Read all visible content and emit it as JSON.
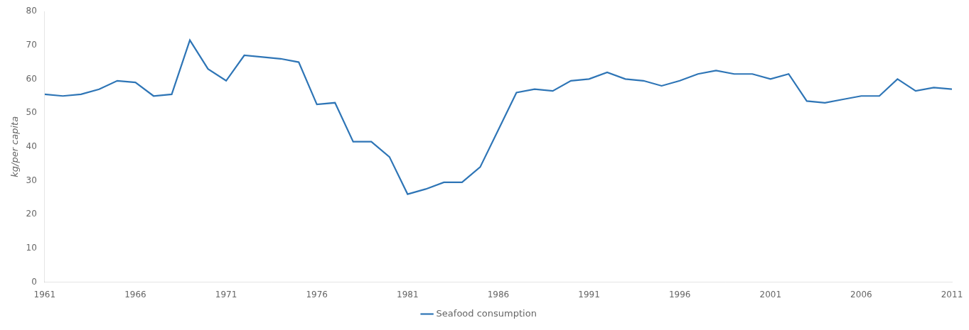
{
  "chart_data": {
    "type": "line",
    "x": [
      1961,
      1962,
      1963,
      1964,
      1965,
      1966,
      1967,
      1968,
      1969,
      1970,
      1971,
      1972,
      1973,
      1974,
      1975,
      1976,
      1977,
      1978,
      1979,
      1980,
      1981,
      1982,
      1983,
      1984,
      1985,
      1986,
      1987,
      1988,
      1989,
      1990,
      1991,
      1992,
      1993,
      1994,
      1995,
      1996,
      1997,
      1998,
      1999,
      2000,
      2001,
      2002,
      2003,
      2004,
      2005,
      2006,
      2007,
      2008,
      2009,
      2010,
      2011
    ],
    "series": [
      {
        "name": "Seafood consumption",
        "color": "#2E75B6",
        "values": [
          55.5,
          55.0,
          55.5,
          57.0,
          59.5,
          59.0,
          55.0,
          55.5,
          71.5,
          63.0,
          59.5,
          67.0,
          66.5,
          66.0,
          65.0,
          52.5,
          53.0,
          41.5,
          41.5,
          37.0,
          26.0,
          27.5,
          29.5,
          29.5,
          34.0,
          45.0,
          56.0,
          57.0,
          56.5,
          59.5,
          60.0,
          62.0,
          60.0,
          59.5,
          58.0,
          59.5,
          61.5,
          62.5,
          61.5,
          61.5,
          60.0,
          61.5,
          53.5,
          53.0,
          54.0,
          55.0,
          55.0,
          60.0,
          56.5,
          57.5,
          57.0
        ]
      }
    ],
    "ylabel": "kg/per capita",
    "xlim": [
      1961,
      2011
    ],
    "xticks": [
      1961,
      1966,
      1971,
      1976,
      1981,
      1986,
      1991,
      1996,
      2001,
      2006,
      2011
    ],
    "ylim": [
      0,
      80
    ],
    "yticks": [
      0,
      10,
      20,
      30,
      40,
      50,
      60,
      70,
      80
    ],
    "grid": false,
    "legend": "bottom"
  }
}
